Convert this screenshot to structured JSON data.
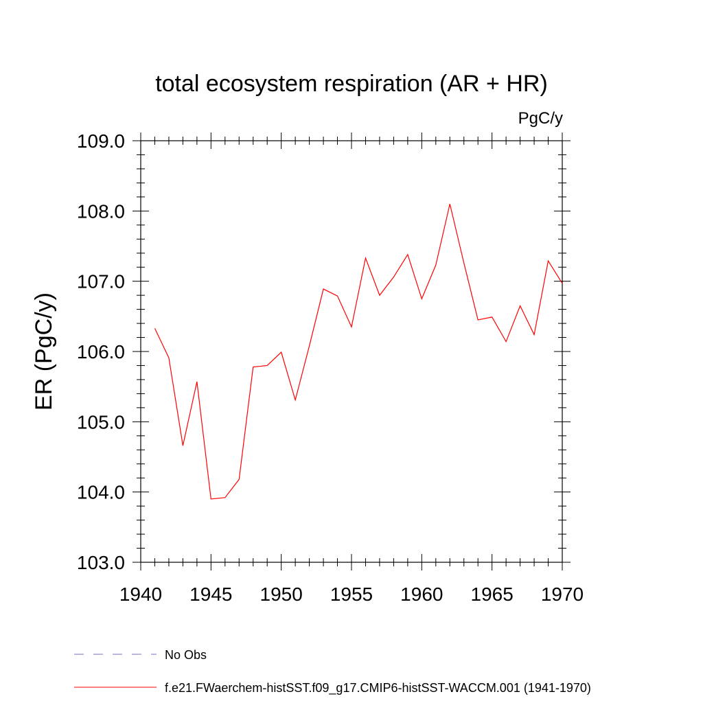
{
  "chart_data": {
    "type": "line",
    "title": "total ecosystem respiration (AR + HR)",
    "units": "PgC/y",
    "ylabel": "ER  (PgC/y)",
    "xlabel": "",
    "xlim": [
      1940,
      1970
    ],
    "ylim": [
      103.0,
      109.0
    ],
    "x_ticks": [
      1940,
      1945,
      1950,
      1955,
      1960,
      1965,
      1970
    ],
    "x_tick_labels": [
      "1940",
      "1945",
      "1950",
      "1955",
      "1960",
      "1965",
      "1970"
    ],
    "y_ticks": [
      103.0,
      104.0,
      105.0,
      106.0,
      107.0,
      108.0,
      109.0
    ],
    "y_tick_labels": [
      "103.0",
      "104.0",
      "105.0",
      "106.0",
      "107.0",
      "108.0",
      "109.0"
    ],
    "grid": false,
    "legend_position": "bottom-left",
    "series": [
      {
        "name": "No Obs",
        "color": "#7b6fb8",
        "dash": "dashed",
        "x": [],
        "values": []
      },
      {
        "name": "f.e21.FWaerchem-histSST.f09_g17.CMIP6-histSST-WACCM.001 (1941-1970)",
        "color": "#ff0000",
        "dash": "solid",
        "x": [
          1941,
          1942,
          1943,
          1944,
          1945,
          1946,
          1947,
          1948,
          1949,
          1950,
          1951,
          1952,
          1953,
          1954,
          1955,
          1956,
          1957,
          1958,
          1959,
          1960,
          1961,
          1962,
          1963,
          1964,
          1965,
          1966,
          1967,
          1968,
          1969,
          1970
        ],
        "values": [
          106.33,
          105.91,
          104.66,
          105.57,
          103.9,
          103.92,
          104.18,
          105.78,
          105.8,
          105.99,
          105.31,
          106.08,
          106.89,
          106.79,
          106.35,
          107.33,
          106.8,
          107.06,
          107.38,
          106.75,
          107.23,
          108.1,
          107.26,
          106.45,
          106.49,
          106.14,
          106.65,
          106.24,
          107.29,
          106.97
        ]
      }
    ]
  }
}
